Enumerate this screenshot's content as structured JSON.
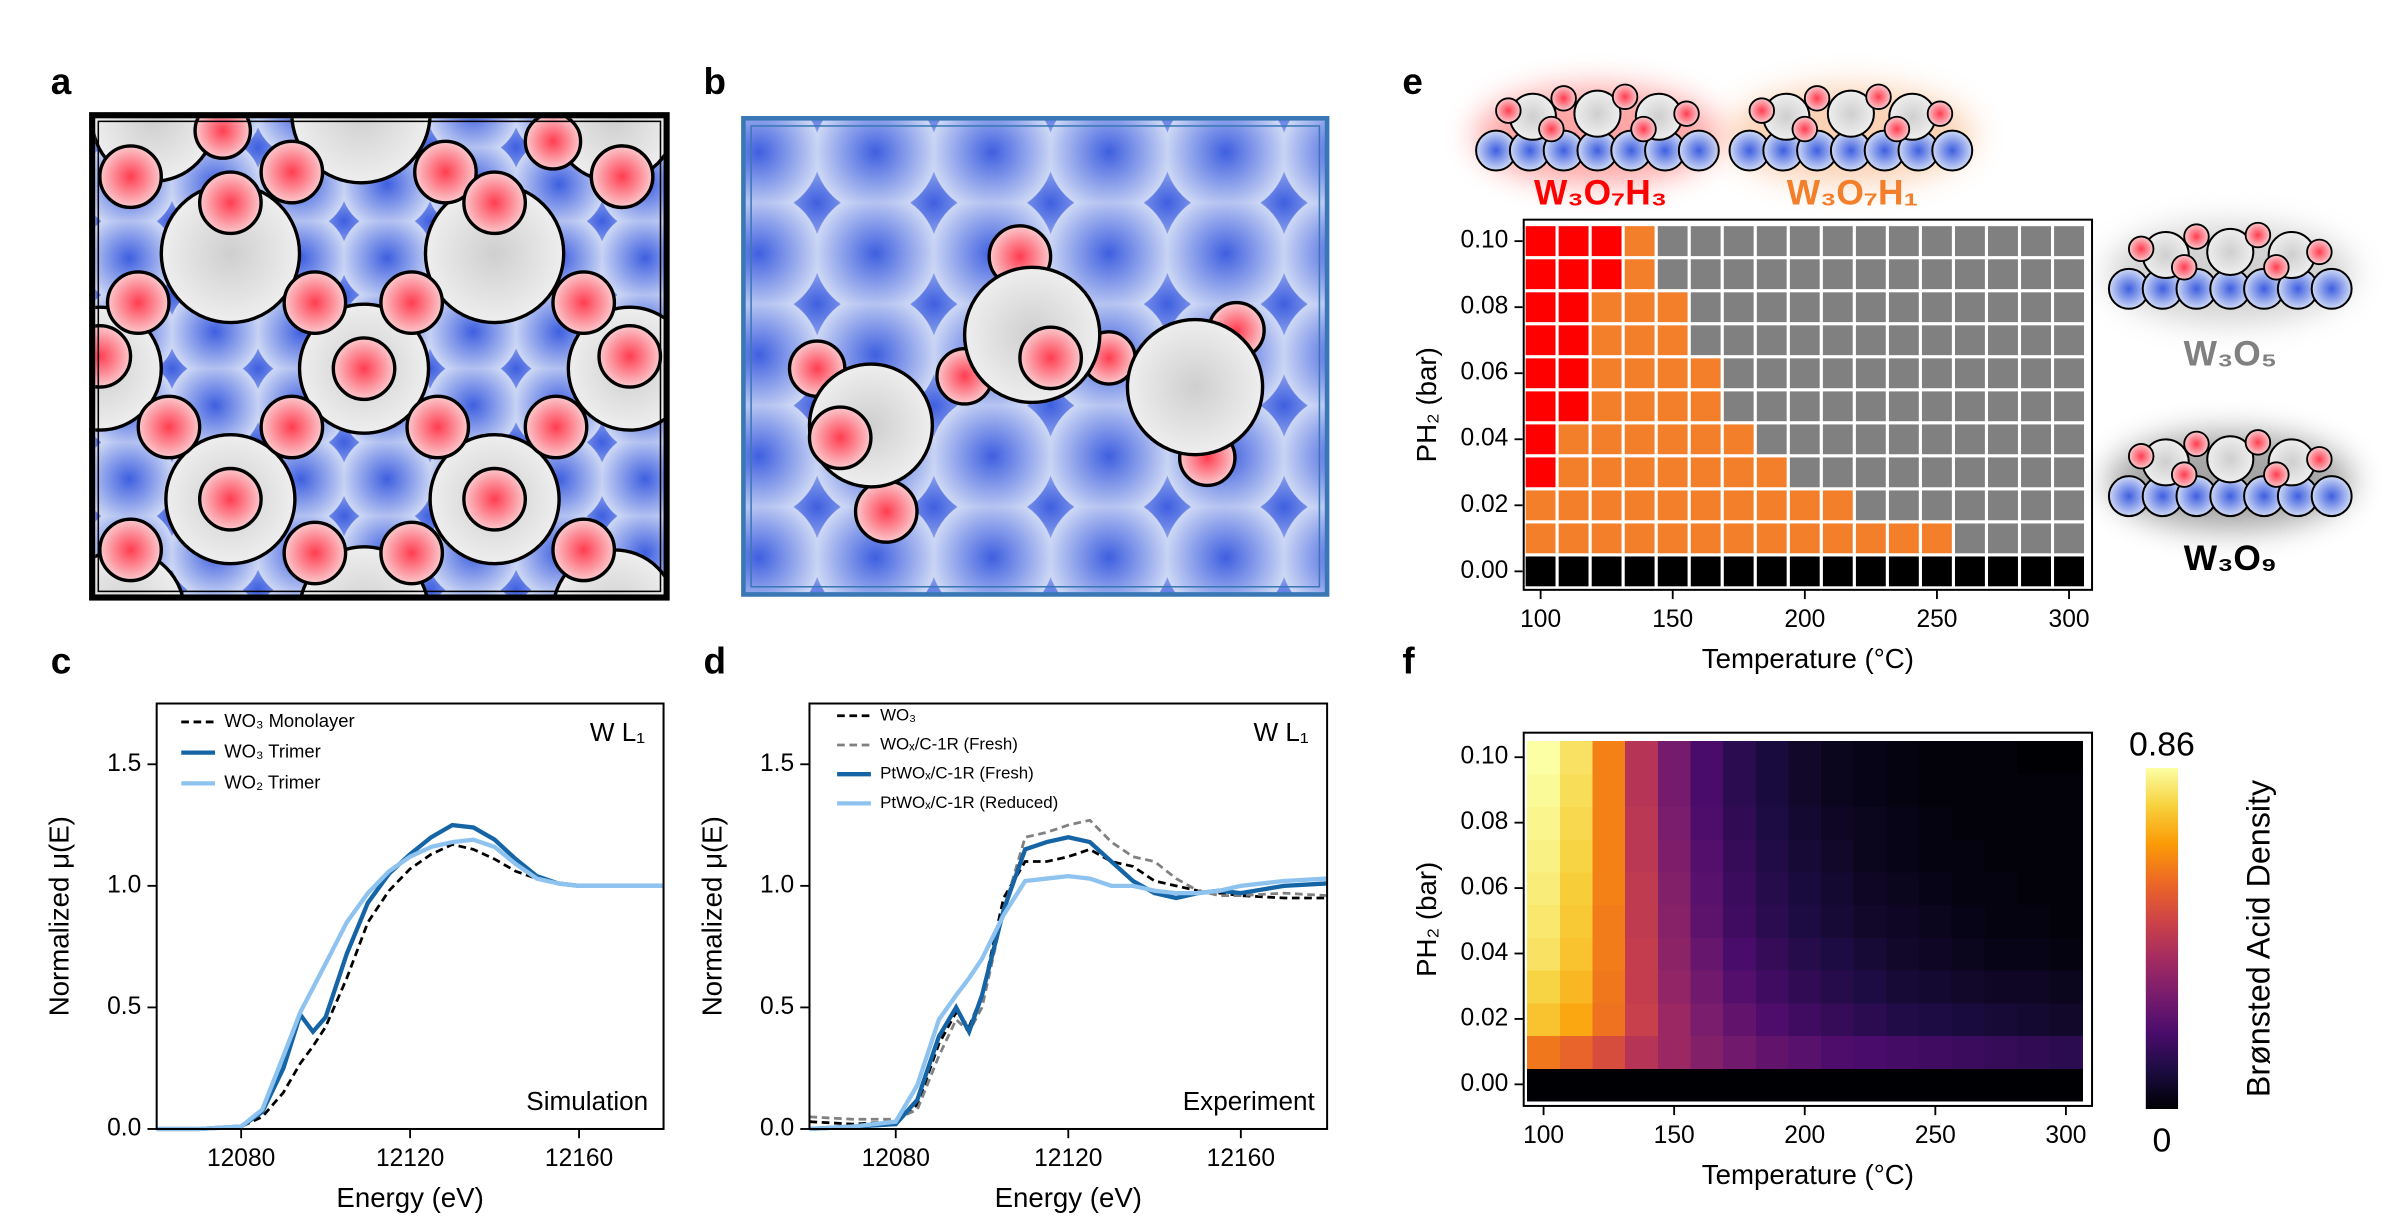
{
  "illustrations": [
    {
      "panel_label": "a"
    },
    {
      "panel_label": "b"
    }
  ],
  "chart_data": [
    {
      "type": "line",
      "panel_label": "c",
      "x_label": "Energy (eV)",
      "y_label": "Normalized μ(E)",
      "annotations": [
        "W L₁",
        "Simulation"
      ],
      "x": [
        12060,
        12070,
        12080,
        12085,
        12090,
        12094,
        12097,
        12100,
        12105,
        12110,
        12115,
        12120,
        12125,
        12130,
        12135,
        12140,
        12145,
        12150,
        12155,
        12160,
        12170,
        12180
      ],
      "xlim": [
        12060,
        12180
      ],
      "xticks": [
        12080,
        12120,
        12160
      ],
      "ylim": [
        0,
        1.75
      ],
      "yticks": [
        {
          "value": 0,
          "label": "0.0"
        },
        {
          "value": 0.5,
          "label": "0.5"
        },
        {
          "value": 1,
          "label": "1.0"
        },
        {
          "value": 1.5,
          "label": "1.5"
        }
      ],
      "legend": "upper-left",
      "series": [
        {
          "name": "WO₃ Monolayer",
          "color": "#000000",
          "dash": true,
          "values": [
            0,
            0,
            0.01,
            0.05,
            0.15,
            0.27,
            0.34,
            0.42,
            0.62,
            0.85,
            0.98,
            1.07,
            1.13,
            1.17,
            1.15,
            1.11,
            1.06,
            1.03,
            1.01,
            1.0,
            1.0,
            1.0
          ]
        },
        {
          "name": "WO₃ Trimer",
          "color": "#1565a6",
          "dash": false,
          "values": [
            0,
            0,
            0.01,
            0.07,
            0.25,
            0.47,
            0.4,
            0.46,
            0.72,
            0.93,
            1.05,
            1.13,
            1.2,
            1.25,
            1.24,
            1.19,
            1.11,
            1.04,
            1.01,
            1.0,
            1.0,
            1.0
          ]
        },
        {
          "name": "WO₂ Trimer",
          "color": "#8ec3f0",
          "dash": false,
          "values": [
            0,
            0,
            0.01,
            0.08,
            0.3,
            0.48,
            0.58,
            0.68,
            0.85,
            0.97,
            1.06,
            1.12,
            1.16,
            1.18,
            1.19,
            1.16,
            1.09,
            1.03,
            1.01,
            1.0,
            1.0,
            1.0
          ]
        }
      ]
    },
    {
      "type": "line",
      "panel_label": "d",
      "x_label": "Energy (eV)",
      "y_label": "Normalized μ(E)",
      "annotations": [
        "W L₁",
        "Experiment"
      ],
      "x": [
        12060,
        12070,
        12080,
        12085,
        12090,
        12094,
        12097,
        12100,
        12105,
        12110,
        12115,
        12120,
        12125,
        12130,
        12135,
        12140,
        12145,
        12150,
        12155,
        12160,
        12170,
        12180
      ],
      "xlim": [
        12060,
        12180
      ],
      "xticks": [
        12080,
        12120,
        12160
      ],
      "ylim": [
        0,
        1.75
      ],
      "yticks": [
        {
          "value": 0,
          "label": "0.0"
        },
        {
          "value": 0.5,
          "label": "0.5"
        },
        {
          "value": 1,
          "label": "1.0"
        },
        {
          "value": 1.5,
          "label": "1.5"
        }
      ],
      "legend": "upper-left",
      "series": [
        {
          "name": "WO₃",
          "color": "#000000",
          "dash": true,
          "values": [
            0.03,
            0.02,
            0.03,
            0.1,
            0.35,
            0.48,
            0.42,
            0.55,
            0.95,
            1.1,
            1.1,
            1.12,
            1.15,
            1.1,
            1.08,
            1.02,
            1.0,
            0.98,
            0.97,
            0.96,
            0.95,
            0.95
          ]
        },
        {
          "name": "WOₓ/C-1R (Fresh)",
          "color": "#808080",
          "dash": true,
          "values": [
            0.05,
            0.04,
            0.04,
            0.08,
            0.3,
            0.45,
            0.4,
            0.5,
            0.9,
            1.2,
            1.22,
            1.25,
            1.27,
            1.18,
            1.12,
            1.1,
            1.03,
            0.98,
            0.96,
            0.96,
            0.97,
            0.96
          ]
        },
        {
          "name": "PtWOₓ/C-1R (Fresh)",
          "color": "#1565a6",
          "dash": false,
          "values": [
            0,
            0.01,
            0.02,
            0.12,
            0.38,
            0.5,
            0.4,
            0.55,
            0.9,
            1.15,
            1.18,
            1.2,
            1.18,
            1.1,
            1.02,
            0.97,
            0.95,
            0.97,
            0.98,
            0.97,
            1.0,
            1.01
          ]
        },
        {
          "name": "PtWOₓ/C-1R (Reduced)",
          "color": "#8ec3f0",
          "dash": false,
          "values": [
            0,
            0.01,
            0.03,
            0.18,
            0.45,
            0.55,
            0.62,
            0.7,
            0.88,
            1.02,
            1.03,
            1.04,
            1.03,
            1.0,
            1.0,
            0.98,
            0.97,
            0.97,
            0.98,
            1.0,
            1.02,
            1.03
          ]
        }
      ]
    },
    {
      "type": "phase-map",
      "panel_label": "e",
      "x_label": "Temperature (°C)",
      "y_label": "PH₂ (bar)",
      "x": [
        100,
        112.5,
        125,
        137.5,
        150,
        162.5,
        175,
        187.5,
        200,
        212.5,
        225,
        237.5,
        250,
        262.5,
        275,
        287.5,
        300
      ],
      "y": [
        0,
        0.01,
        0.02,
        0.03,
        0.04,
        0.05,
        0.06,
        0.07,
        0.08,
        0.09,
        0.1
      ],
      "xlim": [
        93.6,
        308.7
      ],
      "xticks": [
        100,
        150,
        200,
        250,
        300
      ],
      "ylim": [
        -0.0056,
        0.1065
      ],
      "yticks": [
        {
          "value": 0,
          "label": "0.00"
        },
        {
          "value": 0.02,
          "label": "0.02"
        },
        {
          "value": 0.04,
          "label": "0.04"
        },
        {
          "value": 0.06,
          "label": "0.06"
        },
        {
          "value": 0.08,
          "label": "0.08"
        },
        {
          "value": 0.1,
          "label": "0.10"
        }
      ],
      "phases": [
        {
          "name": "W₃O₇H₃",
          "color": "#ff0000"
        },
        {
          "name": "W₃O₇H₁",
          "color": "#f47f2a"
        },
        {
          "name": "W₃O₅",
          "color": "#808080"
        },
        {
          "name": "W₃O₉",
          "color": "#000000"
        }
      ],
      "z": [
        [
          3,
          3,
          3,
          3,
          3,
          3,
          3,
          3,
          3,
          3,
          3,
          3,
          3,
          3,
          3,
          3,
          3
        ],
        [
          1,
          1,
          1,
          1,
          1,
          1,
          1,
          1,
          1,
          1,
          1,
          1,
          1,
          2,
          2,
          2,
          2
        ],
        [
          1,
          1,
          1,
          1,
          1,
          1,
          1,
          1,
          1,
          1,
          2,
          2,
          2,
          2,
          2,
          2,
          2
        ],
        [
          0,
          1,
          1,
          1,
          1,
          1,
          1,
          1,
          2,
          2,
          2,
          2,
          2,
          2,
          2,
          2,
          2
        ],
        [
          0,
          1,
          1,
          1,
          1,
          1,
          1,
          2,
          2,
          2,
          2,
          2,
          2,
          2,
          2,
          2,
          2
        ],
        [
          0,
          0,
          1,
          1,
          1,
          1,
          2,
          2,
          2,
          2,
          2,
          2,
          2,
          2,
          2,
          2,
          2
        ],
        [
          0,
          0,
          1,
          1,
          1,
          1,
          2,
          2,
          2,
          2,
          2,
          2,
          2,
          2,
          2,
          2,
          2
        ],
        [
          0,
          0,
          1,
          1,
          1,
          2,
          2,
          2,
          2,
          2,
          2,
          2,
          2,
          2,
          2,
          2,
          2
        ],
        [
          0,
          0,
          1,
          1,
          1,
          2,
          2,
          2,
          2,
          2,
          2,
          2,
          2,
          2,
          2,
          2,
          2
        ],
        [
          0,
          0,
          0,
          1,
          2,
          2,
          2,
          2,
          2,
          2,
          2,
          2,
          2,
          2,
          2,
          2,
          2
        ],
        [
          0,
          0,
          0,
          1,
          2,
          2,
          2,
          2,
          2,
          2,
          2,
          2,
          2,
          2,
          2,
          2,
          2
        ]
      ]
    },
    {
      "type": "heatmap",
      "panel_label": "f",
      "x_label": "Temperature (°C)",
      "y_label": "PH₂ (bar)",
      "colorbar_label": "Brønsted Acid Density",
      "x": [
        100,
        112.5,
        125,
        137.5,
        150,
        162.5,
        175,
        187.5,
        200,
        212.5,
        225,
        237.5,
        250,
        262.5,
        275,
        287.5,
        300
      ],
      "y": [
        0,
        0.01,
        0.02,
        0.03,
        0.04,
        0.05,
        0.06,
        0.07,
        0.08,
        0.09,
        0.1
      ],
      "xlim": [
        92.4,
        310
      ],
      "xticks": [
        100,
        150,
        200,
        250,
        300
      ],
      "ylim": [
        -0.0066,
        0.1075
      ],
      "yticks": [
        {
          "value": 0,
          "label": "0.00"
        },
        {
          "value": 0.02,
          "label": "0.02"
        },
        {
          "value": 0.04,
          "label": "0.04"
        },
        {
          "value": 0.06,
          "label": "0.06"
        },
        {
          "value": 0.08,
          "label": "0.08"
        },
        {
          "value": 0.1,
          "label": "0.10"
        }
      ],
      "clim": [
        0,
        0.86
      ],
      "cticks": [
        0,
        0.86
      ],
      "colormap": [
        "#000004",
        "#1b0c41",
        "#4a0c6b",
        "#781c6d",
        "#a52c60",
        "#cf4446",
        "#ed6925",
        "#fb9b06",
        "#f7d13d",
        "#fcffa4"
      ],
      "z": [
        [
          0,
          0,
          0,
          0,
          0,
          0,
          0,
          0,
          0,
          0,
          0,
          0,
          0,
          0,
          0,
          0,
          0
        ],
        [
          0.6,
          0.56,
          0.5,
          0.42,
          0.36,
          0.31,
          0.27,
          0.24,
          0.22,
          0.2,
          0.19,
          0.18,
          0.17,
          0.16,
          0.15,
          0.14,
          0.13
        ],
        [
          0.74,
          0.69,
          0.59,
          0.46,
          0.36,
          0.29,
          0.24,
          0.2,
          0.17,
          0.15,
          0.13,
          0.11,
          0.1,
          0.09,
          0.08,
          0.07,
          0.06
        ],
        [
          0.77,
          0.72,
          0.6,
          0.45,
          0.34,
          0.27,
          0.21,
          0.17,
          0.14,
          0.12,
          0.1,
          0.08,
          0.07,
          0.06,
          0.05,
          0.05,
          0.04
        ],
        [
          0.8,
          0.74,
          0.61,
          0.45,
          0.33,
          0.25,
          0.19,
          0.15,
          0.12,
          0.1,
          0.08,
          0.06,
          0.05,
          0.04,
          0.03,
          0.03,
          0.02
        ],
        [
          0.81,
          0.75,
          0.61,
          0.44,
          0.32,
          0.23,
          0.17,
          0.13,
          0.1,
          0.08,
          0.06,
          0.05,
          0.04,
          0.03,
          0.02,
          0.02,
          0.01
        ],
        [
          0.82,
          0.76,
          0.62,
          0.44,
          0.31,
          0.22,
          0.16,
          0.12,
          0.09,
          0.07,
          0.05,
          0.04,
          0.03,
          0.02,
          0.02,
          0.01,
          0.01
        ],
        [
          0.83,
          0.77,
          0.62,
          0.43,
          0.3,
          0.21,
          0.15,
          0.11,
          0.08,
          0.06,
          0.04,
          0.03,
          0.02,
          0.02,
          0.01,
          0.01,
          0.01
        ],
        [
          0.84,
          0.78,
          0.62,
          0.43,
          0.29,
          0.2,
          0.14,
          0.1,
          0.07,
          0.05,
          0.04,
          0.03,
          0.02,
          0.01,
          0.01,
          0.01,
          0.01
        ],
        [
          0.85,
          0.79,
          0.62,
          0.42,
          0.28,
          0.19,
          0.13,
          0.09,
          0.06,
          0.04,
          0.03,
          0.02,
          0.01,
          0.01,
          0.01,
          0.01,
          0.01
        ],
        [
          0.86,
          0.8,
          0.62,
          0.42,
          0.28,
          0.19,
          0.13,
          0.09,
          0.06,
          0.04,
          0.03,
          0.02,
          0.01,
          0.01,
          0.01,
          0,
          0
        ]
      ]
    }
  ]
}
